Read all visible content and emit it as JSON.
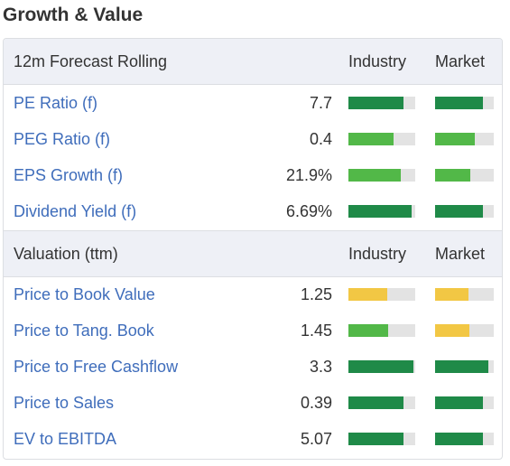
{
  "title": "Growth & Value",
  "colors": {
    "dark_green": "#1f8a48",
    "light_green": "#52b848",
    "yellow": "#f2c744",
    "link": "#3f6dbb"
  },
  "sections": [
    {
      "label": "12m Forecast Rolling",
      "col_industry": "Industry",
      "col_market": "Market",
      "rows": [
        {
          "name": "PE Ratio (f)",
          "value": "7.7",
          "industry": 0.82,
          "industry_color": "dark_green",
          "market": 0.82,
          "market_color": "dark_green"
        },
        {
          "name": "PEG Ratio (f)",
          "value": "0.4",
          "industry": 0.68,
          "industry_color": "light_green",
          "market": 0.67,
          "market_color": "light_green"
        },
        {
          "name": "EPS Growth (f)",
          "value": "21.9%",
          "industry": 0.78,
          "industry_color": "light_green",
          "market": 0.6,
          "market_color": "light_green"
        },
        {
          "name": "Dividend Yield (f)",
          "value": "6.69%",
          "industry": 0.95,
          "industry_color": "dark_green",
          "market": 0.82,
          "market_color": "dark_green"
        }
      ]
    },
    {
      "label": "Valuation (ttm)",
      "col_industry": "Industry",
      "col_market": "Market",
      "rows": [
        {
          "name": "Price to Book Value",
          "value": "1.25",
          "industry": 0.58,
          "industry_color": "yellow",
          "market": 0.57,
          "market_color": "yellow"
        },
        {
          "name": "Price to Tang. Book",
          "value": "1.45",
          "industry": 0.6,
          "industry_color": "light_green",
          "market": 0.58,
          "market_color": "yellow"
        },
        {
          "name": "Price to Free Cashflow",
          "value": "3.3",
          "industry": 0.97,
          "industry_color": "dark_green",
          "market": 0.9,
          "market_color": "dark_green"
        },
        {
          "name": "Price to Sales",
          "value": "0.39",
          "industry": 0.83,
          "industry_color": "dark_green",
          "market": 0.82,
          "market_color": "dark_green"
        },
        {
          "name": "EV to EBITDA",
          "value": "5.07",
          "industry": 0.83,
          "industry_color": "dark_green",
          "market": 0.82,
          "market_color": "dark_green"
        }
      ]
    }
  ]
}
